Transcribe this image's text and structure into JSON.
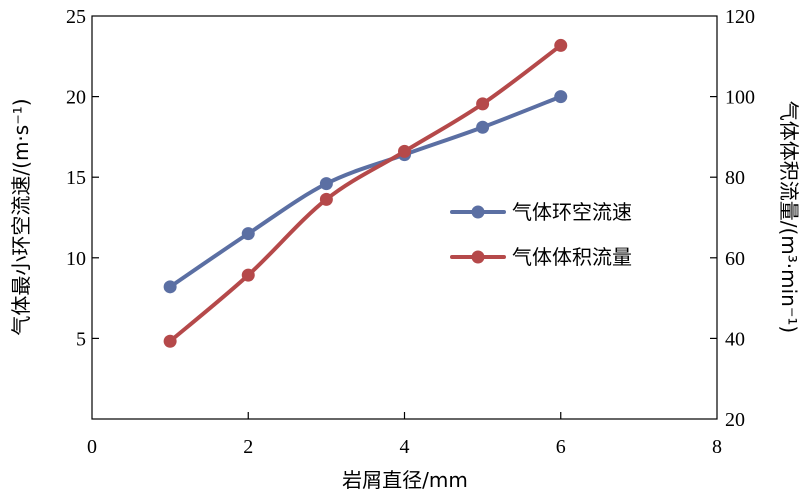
{
  "chart_data": {
    "type": "line",
    "x": [
      1,
      2,
      3,
      4,
      5,
      6
    ],
    "xlabel": "岩屑直径/mm",
    "xlim": [
      0,
      8
    ],
    "xticks": [
      "0",
      "2",
      "4",
      "6",
      "8"
    ],
    "ylabel_left": "气体最小环空流速/(m·s⁻¹)",
    "ylim_left": [
      0,
      25
    ],
    "yticks_left": [
      "5",
      "10",
      "15",
      "20",
      "25"
    ],
    "ylabel_right": "气体体积流量/(m³·min⁻¹)",
    "ylim_right": [
      20,
      120
    ],
    "yticks_right": [
      "20",
      "40",
      "60",
      "80",
      "100",
      "120"
    ],
    "series": [
      {
        "name": "气体环空流速",
        "axis": "left",
        "color": "#5b6fa3",
        "values": [
          8.2,
          11.5,
          14.6,
          16.4,
          18.1,
          20.0
        ]
      },
      {
        "name": "气体体积流量",
        "axis": "right",
        "color": "#b5494a",
        "values": [
          39.3,
          55.7,
          74.5,
          86.4,
          98.2,
          112.7
        ]
      }
    ],
    "legend": "center-right",
    "grid": false
  }
}
